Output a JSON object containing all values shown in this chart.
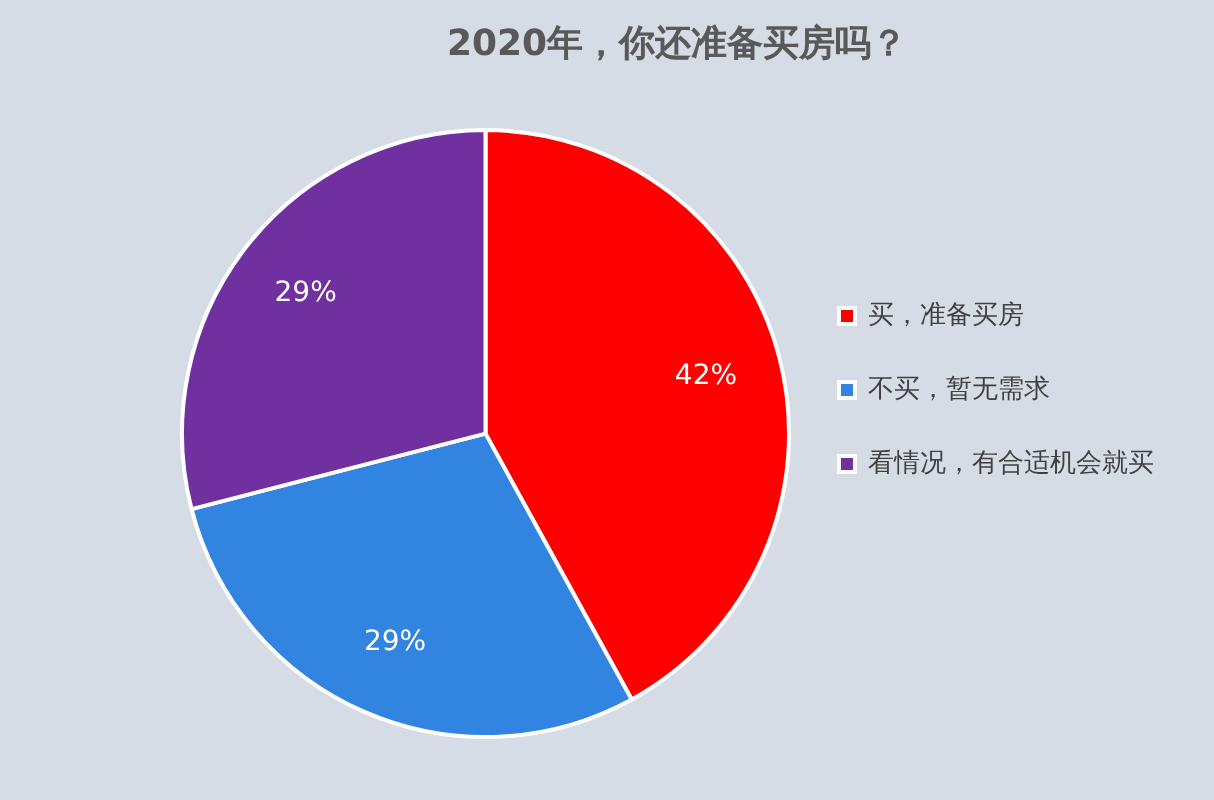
{
  "chart_data": {
    "type": "pie",
    "title": "2020年，你还准备买房吗？",
    "categories": [
      "买，准备买房",
      "不买，暂无需求",
      "看情况，有合适机会就买"
    ],
    "values": [
      42,
      29,
      29
    ],
    "colors": [
      "#ff0000",
      "#3184e0",
      "#7030a0"
    ],
    "value_labels": [
      "42%",
      "29%",
      "29%"
    ],
    "legend": "right"
  }
}
